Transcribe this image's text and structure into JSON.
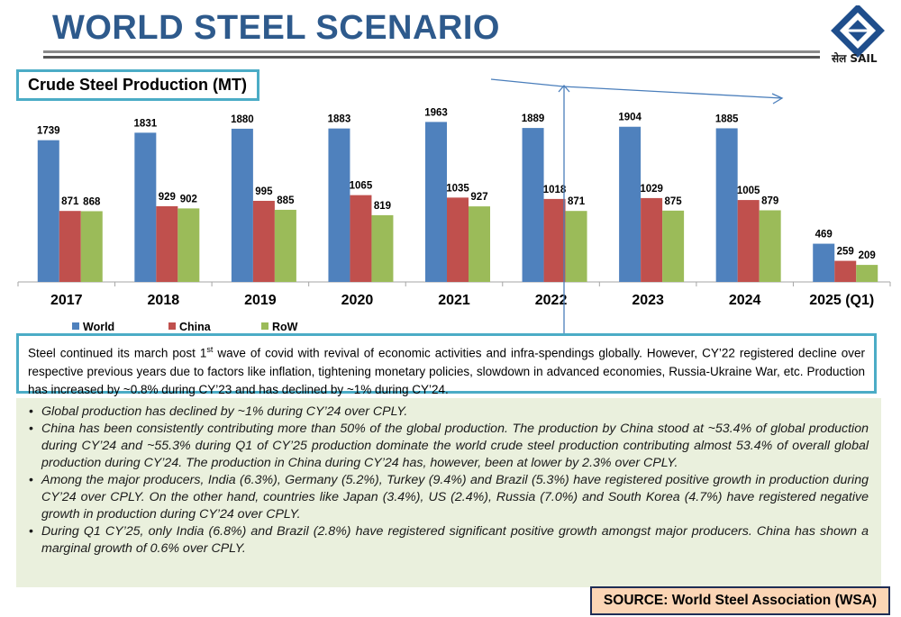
{
  "header": {
    "title": "WORLD STEEL SCENARIO",
    "logo_label": "सेल SAIL",
    "logo_color": "#1f4e8c"
  },
  "chart_box": {
    "title": "Crude Steel Production (MT)"
  },
  "chart_data": {
    "type": "bar",
    "title": "Crude Steel Production (MT)",
    "categories": [
      "2017",
      "2018",
      "2019",
      "2020",
      "2021",
      "2022",
      "2023",
      "2024",
      "2025 (Q1)"
    ],
    "series": [
      {
        "name": "World",
        "color": "#4f81bd",
        "values": [
          1739,
          1831,
          1880,
          1883,
          1963,
          1889,
          1904,
          1885,
          469
        ]
      },
      {
        "name": "China",
        "color": "#c0504d",
        "values": [
          871,
          929,
          995,
          1065,
          1035,
          1018,
          1029,
          1005,
          259
        ]
      },
      {
        "name": "RoW",
        "color": "#9bbb59",
        "values": [
          868,
          902,
          885,
          819,
          927,
          871,
          875,
          879,
          209
        ]
      }
    ],
    "ylim": [
      0,
      2100
    ],
    "grid": false,
    "legend_position": "bottom-left",
    "annotation_color": "#4a7ebb"
  },
  "description": {
    "part1": "Steel continued its march post 1",
    "sup": "st",
    "part2": " wave of covid with revival of economic activities and infra-spendings globally. However, CY’22 registered decline over respective previous years due to factors like inflation, tightening monetary policies, slowdown in advanced economies, Russia-Ukraine War, etc. Production has increased by ~0.8% during CY’23 and has declined by ~1% during CY’24."
  },
  "bullets": [
    "Global production has declined by ~1% during CY’24 over CPLY.",
    "China has been consistently contributing more than 50% of the global production. The production by China stood at ~53.4% of global production during CY’24 and ~55.3% during Q1 of CY’25 production dominate the world crude steel production contributing almost 53.4% of overall global production during CY’24. The production in China during CY’24 has, however, been at lower by 2.3% over CPLY.",
    "Among the major producers, India (6.3%), Germany (5.2%), Turkey (9.4%) and Brazil (5.3%) have registered positive growth in production during CY’24 over CPLY. On the other hand, countries like Japan (3.4%), US (2.4%), Russia (7.0%) and South Korea (4.7%) have registered negative growth in production during CY’24 over CPLY.",
    "During Q1 CY’25, only India (6.8%) and Brazil (2.8%)  have registered significant positive growth amongst major producers. China has shown a marginal growth of 0.6% over CPLY."
  ],
  "source": "SOURCE: World Steel Association (WSA)"
}
